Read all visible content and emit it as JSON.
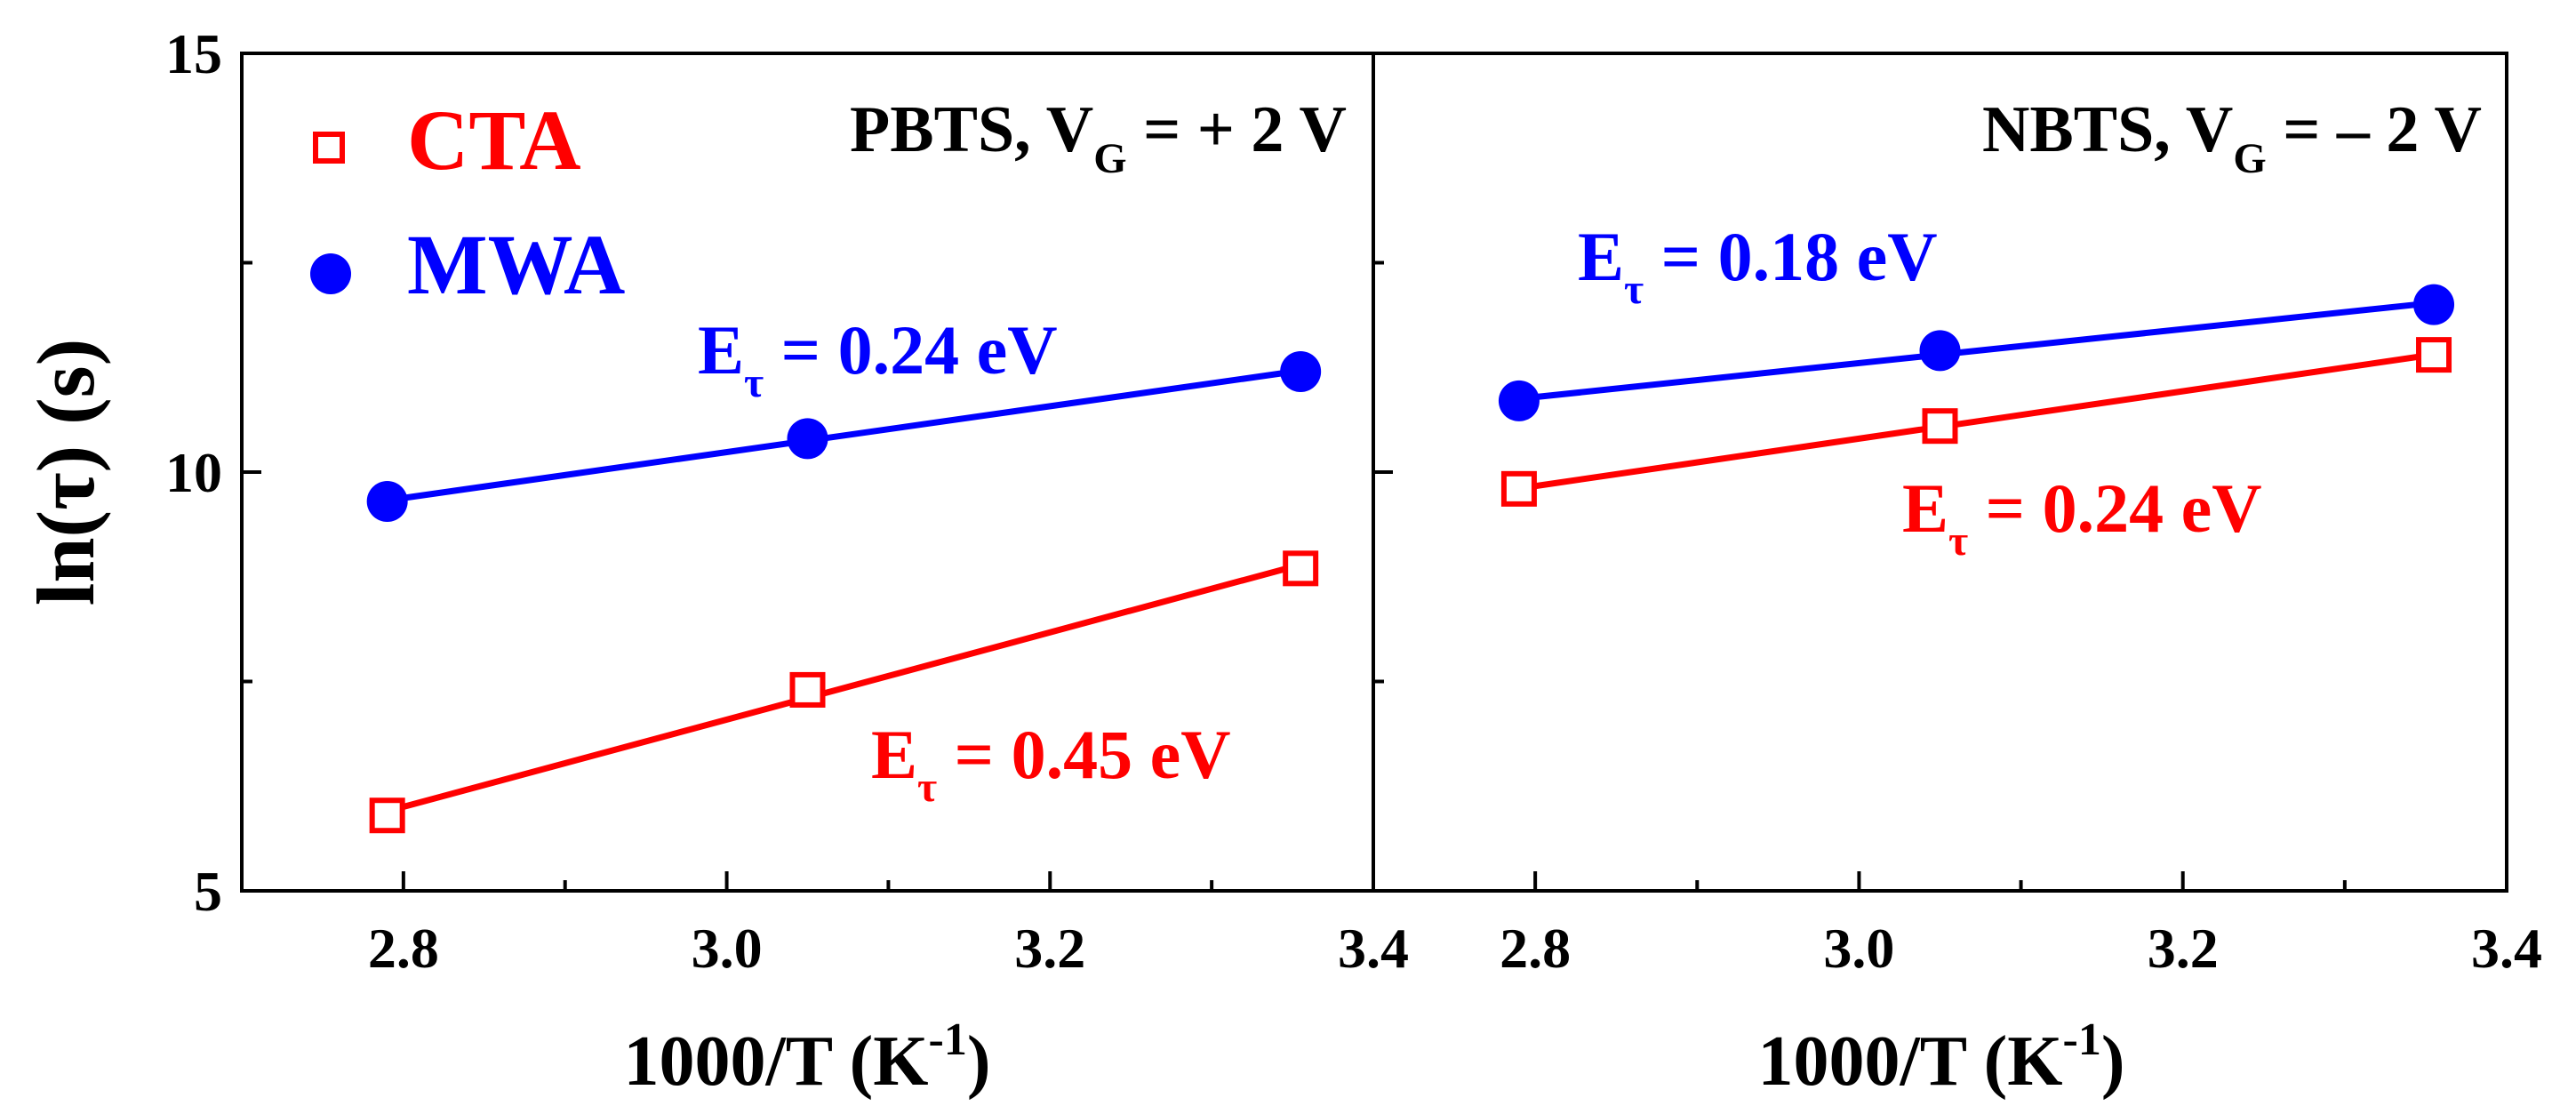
{
  "chart_data": [
    {
      "type": "scatter",
      "panel_label": "PBTS, V",
      "panel_label_sub": "G",
      "panel_label_rest": " = + 2 V",
      "xlabel": "1000/T (K",
      "xlabel_sup": "-1",
      "xlabel_end": ")",
      "ylabel": "ln(τ) (s)",
      "xlim": [
        2.7,
        3.4
      ],
      "ylim": [
        5,
        15
      ],
      "xticks": [
        "2.8",
        "3.0",
        "3.2",
        "3.4"
      ],
      "yticks": [
        "5",
        "10",
        "15"
      ],
      "series": [
        {
          "name": "CTA",
          "color": "#ff0000",
          "marker": "open-square",
          "x": [
            2.79,
            3.05,
            3.355
          ],
          "y": [
            5.9,
            7.4,
            8.85
          ],
          "annotation": {
            "main": "E",
            "sub": "τ",
            "rest": " = 0.45 eV"
          }
        },
        {
          "name": "MWA",
          "color": "#0000ff",
          "marker": "filled-circle",
          "x": [
            2.79,
            3.05,
            3.355
          ],
          "y": [
            9.65,
            10.4,
            11.2
          ],
          "annotation": {
            "main": "E",
            "sub": "τ",
            "rest": " = 0.24 eV"
          }
        }
      ]
    },
    {
      "type": "scatter",
      "panel_label": "NBTS, V",
      "panel_label_sub": "G",
      "panel_label_rest": " = – 2 V",
      "xlabel": "1000/T (K",
      "xlabel_sup": "-1",
      "xlabel_end": ")",
      "xlim": [
        2.7,
        3.4
      ],
      "ylim": [
        5,
        15
      ],
      "xticks": [
        "2.8",
        "3.0",
        "3.2",
        "3.4"
      ],
      "series": [
        {
          "name": "CTA",
          "color": "#ff0000",
          "marker": "open-square",
          "x": [
            2.79,
            3.05,
            3.355
          ],
          "y": [
            9.8,
            10.55,
            11.4
          ],
          "annotation": {
            "main": "E",
            "sub": "τ",
            "rest": " = 0.24 eV"
          }
        },
        {
          "name": "MWA",
          "color": "#0000ff",
          "marker": "filled-circle",
          "x": [
            2.79,
            3.05,
            3.355
          ],
          "y": [
            10.85,
            11.45,
            12.0
          ],
          "annotation": {
            "main": "E",
            "sub": "τ",
            "rest": " = 0.18 eV"
          }
        }
      ]
    }
  ],
  "legend": [
    {
      "label": "CTA",
      "color": "#ff0000"
    },
    {
      "label": "MWA",
      "color": "#0000ff"
    }
  ]
}
